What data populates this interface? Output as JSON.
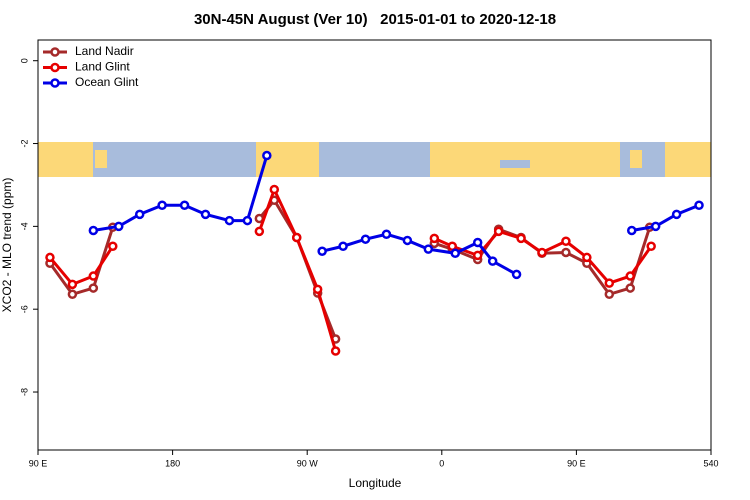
{
  "chart_data": {
    "type": "line",
    "title": "30N-45N August (Ver 10)   2015-01-01 to 2020-12-18",
    "x_label": "Longitude",
    "y_label": "XCO2 - MLO trend (ppm)",
    "xlim": [
      90,
      540
    ],
    "ylim": [
      -9.4,
      0.5
    ],
    "xticks": [
      {
        "value": 90,
        "label": "90 E"
      },
      180,
      {
        "value": 270,
        "label": "90 W"
      },
      {
        "value": 360,
        "label": "0"
      },
      {
        "value": 450,
        "label": "90 E"
      },
      540
    ],
    "yticks": [
      0,
      -2,
      -4,
      -6,
      -8
    ],
    "legend": "top-left",
    "series": [
      {
        "name": "Land Nadir",
        "color": "#a52a2a",
        "x": [
          98,
          113,
          127,
          140,
          null,
          238,
          248,
          263,
          277,
          289,
          null,
          355,
          367,
          384,
          398,
          413,
          427,
          443,
          457,
          472,
          486,
          499
        ],
        "values": [
          -4.89,
          -5.64,
          -5.49,
          -4.02,
          null,
          -3.81,
          -3.37,
          -4.27,
          -5.61,
          -6.72,
          null,
          -4.41,
          -4.55,
          -4.8,
          -4.07,
          -4.27,
          -4.65,
          -4.63,
          -4.89,
          -5.64,
          -5.49,
          -4.02
        ]
      },
      {
        "name": "Land Glint",
        "color": "#e60000",
        "x": [
          98,
          113,
          127,
          140,
          null,
          238,
          248,
          263,
          277,
          289,
          null,
          355,
          367,
          384,
          398,
          413,
          427,
          443,
          457,
          472,
          486,
          500
        ],
        "values": [
          -4.75,
          -5.4,
          -5.2,
          -4.48,
          null,
          -4.12,
          -3.11,
          -4.27,
          -5.52,
          -7.01,
          null,
          -4.29,
          -4.48,
          -4.7,
          -4.12,
          -4.29,
          -4.63,
          -4.36,
          -4.75,
          -5.37,
          -5.2,
          -4.48
        ]
      },
      {
        "name": "Ocean Glint",
        "color": "#0000e6",
        "x": [
          127,
          144,
          158,
          173,
          188,
          202,
          218,
          230,
          243,
          null,
          280,
          294,
          309,
          323,
          337,
          351,
          369,
          384,
          394,
          410,
          null,
          487,
          503,
          517,
          532
        ],
        "values": [
          -4.1,
          -4.0,
          -3.71,
          -3.49,
          -3.49,
          -3.71,
          -3.86,
          -3.86,
          -2.29,
          null,
          -4.6,
          -4.48,
          -4.31,
          -4.19,
          -4.34,
          -4.55,
          -4.65,
          -4.39,
          -4.84,
          -5.16,
          null,
          -4.1,
          -4.0,
          -3.71,
          -3.49
        ]
      }
    ]
  }
}
